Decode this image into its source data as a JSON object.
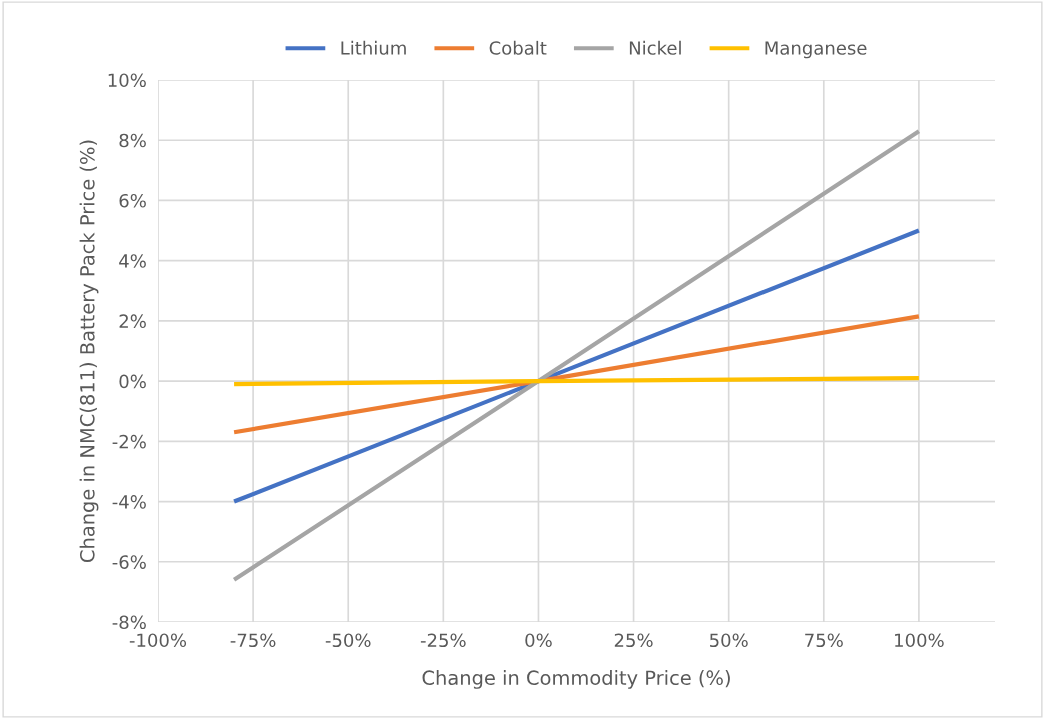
{
  "chart_data": {
    "type": "line",
    "xlabel": "Change in Commodity Price (%)",
    "ylabel": "Change in NMC(811) Battery Pack Price (%)",
    "x": [
      -80,
      0,
      100
    ],
    "series": [
      {
        "name": "Lithium",
        "color": "#4472c4",
        "values": [
          -4.0,
          0,
          5.0
        ]
      },
      {
        "name": "Cobalt",
        "color": "#ed7d31",
        "values": [
          -1.7,
          0,
          2.15
        ]
      },
      {
        "name": "Nickel",
        "color": "#a5a5a5",
        "values": [
          -6.6,
          0,
          8.3
        ]
      },
      {
        "name": "Manganese",
        "color": "#ffc000",
        "values": [
          -0.1,
          0,
          0.1
        ]
      }
    ],
    "xlim": [
      -100,
      120
    ],
    "xticks": [
      {
        "value": -100,
        "label": "-100%"
      },
      {
        "value": -75,
        "label": "-75%"
      },
      {
        "value": -50,
        "label": "-50%"
      },
      {
        "value": -25,
        "label": "-25%"
      },
      {
        "value": 0,
        "label": "0%"
      },
      {
        "value": 25,
        "label": "25%"
      },
      {
        "value": 50,
        "label": "50%"
      },
      {
        "value": 75,
        "label": "75%"
      },
      {
        "value": 100,
        "label": "100%"
      }
    ],
    "ylim": [
      -8,
      10
    ],
    "yticks": [
      {
        "value": -8,
        "label": "-8%"
      },
      {
        "value": -6,
        "label": "-6%"
      },
      {
        "value": -4,
        "label": "-4%"
      },
      {
        "value": -2,
        "label": "-2%"
      },
      {
        "value": 0,
        "label": "0%"
      },
      {
        "value": 2,
        "label": "2%"
      },
      {
        "value": 4,
        "label": "4%"
      },
      {
        "value": 6,
        "label": "6%"
      },
      {
        "value": 8,
        "label": "8%"
      },
      {
        "value": 10,
        "label": "10%"
      }
    ],
    "grid": true,
    "legend": "top",
    "marker": "none",
    "line_style": "solid"
  }
}
